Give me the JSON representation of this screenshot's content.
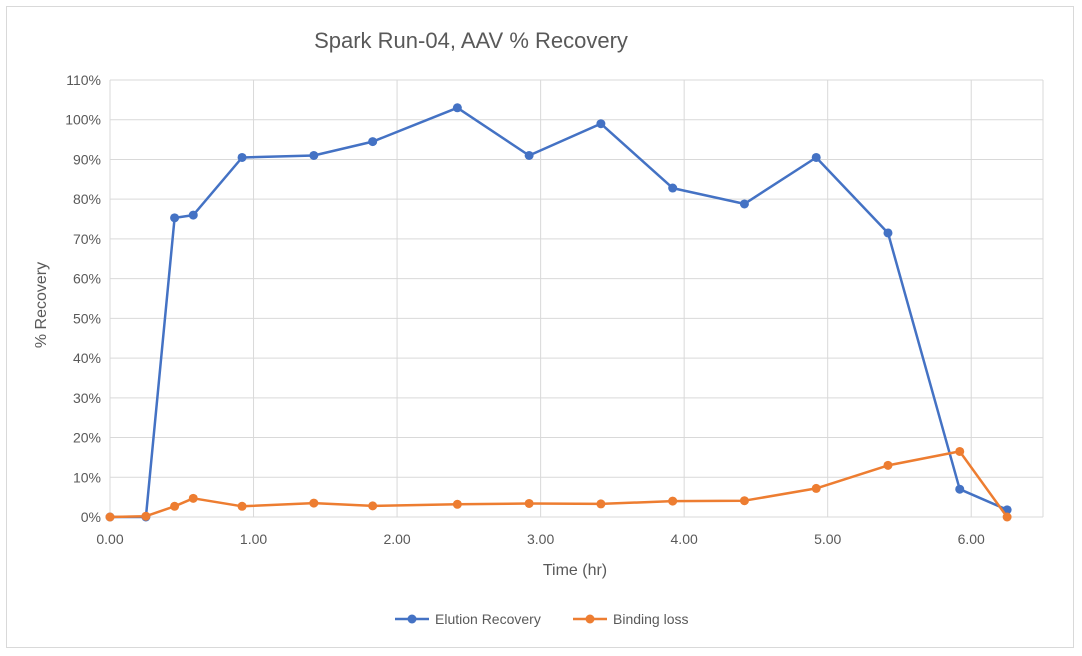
{
  "chart_data": {
    "type": "line",
    "title": "Spark Run-04, AAV % Recovery",
    "xlabel": "Time (hr)",
    "ylabel": "% Recovery",
    "xlim": [
      0,
      6.5
    ],
    "ylim": [
      0,
      1.1
    ],
    "x_ticks": [
      0,
      1,
      2,
      3,
      4,
      5,
      6
    ],
    "x_tick_labels": [
      "0.00",
      "1.00",
      "2.00",
      "3.00",
      "4.00",
      "5.00",
      "6.00"
    ],
    "y_ticks": [
      0,
      0.1,
      0.2,
      0.3,
      0.4,
      0.5,
      0.6,
      0.7,
      0.8,
      0.9,
      1.0,
      1.1
    ],
    "y_tick_labels": [
      "0%",
      "10%",
      "20%",
      "30%",
      "40%",
      "50%",
      "60%",
      "70%",
      "80%",
      "90%",
      "100%",
      "110%"
    ],
    "grid": true,
    "legend_position": "bottom",
    "series": [
      {
        "name": "Elution Recovery",
        "color": "#4472c4",
        "points": [
          {
            "x": 0.0,
            "y": 0.0
          },
          {
            "x": 0.25,
            "y": 0.0
          },
          {
            "x": 0.45,
            "y": 0.753
          },
          {
            "x": 0.58,
            "y": 0.76
          },
          {
            "x": 0.92,
            "y": 0.905
          },
          {
            "x": 1.42,
            "y": 0.91
          },
          {
            "x": 1.83,
            "y": 0.945
          },
          {
            "x": 2.42,
            "y": 1.03
          },
          {
            "x": 2.92,
            "y": 0.91
          },
          {
            "x": 3.42,
            "y": 0.99
          },
          {
            "x": 3.92,
            "y": 0.828
          },
          {
            "x": 4.42,
            "y": 0.788
          },
          {
            "x": 4.92,
            "y": 0.905
          },
          {
            "x": 5.42,
            "y": 0.715
          },
          {
            "x": 5.92,
            "y": 0.07
          },
          {
            "x": 6.25,
            "y": 0.018
          }
        ]
      },
      {
        "name": "Binding loss",
        "color": "#ed7d31",
        "points": [
          {
            "x": 0.0,
            "y": 0.0
          },
          {
            "x": 0.25,
            "y": 0.002
          },
          {
            "x": 0.45,
            "y": 0.027
          },
          {
            "x": 0.58,
            "y": 0.047
          },
          {
            "x": 0.92,
            "y": 0.027
          },
          {
            "x": 1.42,
            "y": 0.035
          },
          {
            "x": 1.83,
            "y": 0.028
          },
          {
            "x": 2.42,
            "y": 0.032
          },
          {
            "x": 2.92,
            "y": 0.034
          },
          {
            "x": 3.42,
            "y": 0.033
          },
          {
            "x": 3.92,
            "y": 0.04
          },
          {
            "x": 4.42,
            "y": 0.041
          },
          {
            "x": 4.92,
            "y": 0.072
          },
          {
            "x": 5.42,
            "y": 0.13
          },
          {
            "x": 5.92,
            "y": 0.165
          },
          {
            "x": 6.25,
            "y": 0.0
          }
        ]
      }
    ]
  }
}
